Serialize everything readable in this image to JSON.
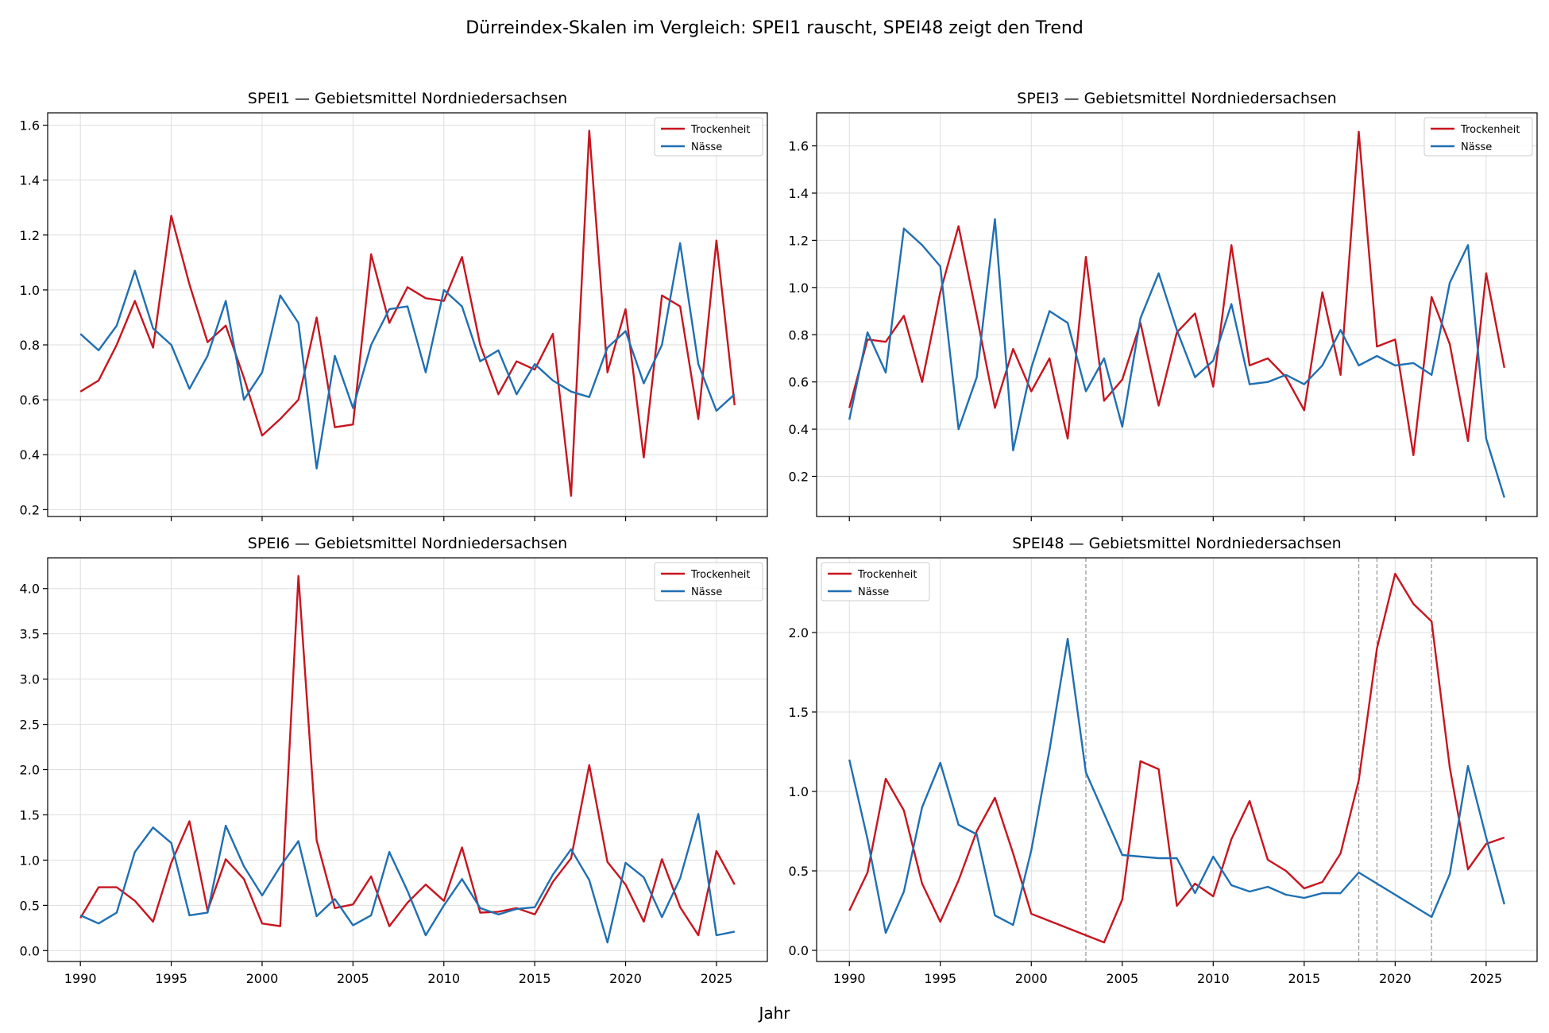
{
  "figure": {
    "suptitle": "Dürreindex-Skalen im Vergleich: SPEI1 rauscht, SPEI48 zeigt den Trend",
    "xlabel": "Jahr"
  },
  "colors": {
    "drought": "#c8151f",
    "wet": "#1f6fb2",
    "grid": "#dedede",
    "marker": "#999999"
  },
  "chart_data": [
    {
      "type": "line",
      "title": "SPEI1 — Gebietsmittel Nordniedersachsen",
      "xlabel": "",
      "ylabel": "",
      "xlim": [
        1988.2,
        2027.8
      ],
      "ylim": [
        0.175,
        1.645
      ],
      "xticks": [
        1990,
        1995,
        2000,
        2005,
        2010,
        2015,
        2020,
        2025
      ],
      "yticks": [
        0.2,
        0.4,
        0.6,
        0.8,
        1.0,
        1.2,
        1.4,
        1.6
      ],
      "grid": true,
      "legend": "top-right",
      "x": [
        1990,
        1991,
        1992,
        1993,
        1994,
        1995,
        1996,
        1997,
        1998,
        1999,
        2000,
        2001,
        2002,
        2003,
        2004,
        2005,
        2006,
        2007,
        2008,
        2009,
        2010,
        2011,
        2012,
        2013,
        2014,
        2015,
        2016,
        2017,
        2018,
        2019,
        2020,
        2021,
        2022,
        2023,
        2024,
        2025,
        2026
      ],
      "series": [
        {
          "name": "Trockenheit",
          "color": "#c8151f",
          "values": [
            0.63,
            0.67,
            0.8,
            0.96,
            0.79,
            1.27,
            1.02,
            0.81,
            0.87,
            0.68,
            0.47,
            0.53,
            0.6,
            0.9,
            0.5,
            0.51,
            1.13,
            0.88,
            1.01,
            0.97,
            0.96,
            1.12,
            0.8,
            0.62,
            0.74,
            0.71,
            0.84,
            0.25,
            1.58,
            0.7,
            0.93,
            0.39,
            0.98,
            0.94,
            0.53,
            1.18,
            0.58
          ]
        },
        {
          "name": "Nässe",
          "color": "#1f6fb2",
          "values": [
            0.84,
            0.78,
            0.87,
            1.07,
            0.86,
            0.8,
            0.64,
            0.76,
            0.96,
            0.6,
            0.7,
            0.98,
            0.88,
            0.35,
            0.76,
            0.57,
            0.8,
            0.93,
            0.94,
            0.7,
            1.0,
            0.94,
            0.74,
            0.78,
            0.62,
            0.73,
            0.67,
            0.63,
            0.61,
            0.79,
            0.85,
            0.66,
            0.8,
            1.17,
            0.73,
            0.56,
            0.62
          ]
        }
      ],
      "vlines": []
    },
    {
      "type": "line",
      "title": "SPEI3 — Gebietsmittel Nordniedersachsen",
      "xlabel": "",
      "ylabel": "",
      "xlim": [
        1988.2,
        2027.8
      ],
      "ylim": [
        0.03,
        1.74
      ],
      "xticks": [
        1990,
        1995,
        2000,
        2005,
        2010,
        2015,
        2020,
        2025
      ],
      "yticks": [
        0.2,
        0.4,
        0.6,
        0.8,
        1.0,
        1.2,
        1.4,
        1.6
      ],
      "grid": true,
      "legend": "top-right",
      "x": [
        1990,
        1991,
        1992,
        1993,
        1994,
        1995,
        1996,
        1997,
        1998,
        1999,
        2000,
        2001,
        2002,
        2003,
        2004,
        2005,
        2006,
        2007,
        2008,
        2009,
        2010,
        2011,
        2012,
        2013,
        2014,
        2015,
        2016,
        2017,
        2018,
        2019,
        2020,
        2021,
        2022,
        2023,
        2024,
        2025,
        2026
      ],
      "series": [
        {
          "name": "Trockenheit",
          "color": "#c8151f",
          "values": [
            0.49,
            0.78,
            0.77,
            0.88,
            0.6,
            0.98,
            1.26,
            0.88,
            0.49,
            0.74,
            0.56,
            0.7,
            0.36,
            1.13,
            0.52,
            0.61,
            0.85,
            0.5,
            0.81,
            0.89,
            0.58,
            1.18,
            0.67,
            0.7,
            0.62,
            0.48,
            0.98,
            0.63,
            1.66,
            0.75,
            0.78,
            0.29,
            0.96,
            0.76,
            0.35,
            1.06,
            0.66
          ]
        },
        {
          "name": "Nässe",
          "color": "#1f6fb2",
          "values": [
            0.44,
            0.81,
            0.64,
            1.25,
            1.18,
            1.09,
            0.4,
            0.62,
            1.29,
            0.31,
            0.66,
            0.9,
            0.85,
            0.56,
            0.7,
            0.41,
            0.87,
            1.06,
            0.82,
            0.62,
            0.69,
            0.93,
            0.59,
            0.6,
            0.63,
            0.59,
            0.67,
            0.82,
            0.67,
            0.71,
            0.67,
            0.68,
            0.63,
            1.02,
            1.18,
            0.36,
            0.11
          ]
        }
      ],
      "vlines": []
    },
    {
      "type": "line",
      "title": "SPEI6 — Gebietsmittel Nordniedersachsen",
      "xlabel": "",
      "ylabel": "",
      "xlim": [
        1988.2,
        2027.8
      ],
      "ylim": [
        -0.12,
        4.34
      ],
      "xticks": [
        1990,
        1995,
        2000,
        2005,
        2010,
        2015,
        2020,
        2025
      ],
      "yticks": [
        0.0,
        0.5,
        1.0,
        1.5,
        2.0,
        2.5,
        3.0,
        3.5,
        4.0
      ],
      "grid": true,
      "legend": "top-right",
      "x": [
        1990,
        1991,
        1992,
        1993,
        1994,
        1995,
        1996,
        1997,
        1998,
        1999,
        2000,
        2001,
        2002,
        2003,
        2004,
        2005,
        2006,
        2007,
        2008,
        2009,
        2010,
        2011,
        2012,
        2013,
        2014,
        2015,
        2016,
        2017,
        2018,
        2019,
        2020,
        2021,
        2022,
        2023,
        2024,
        2025,
        2026
      ],
      "series": [
        {
          "name": "Trockenheit",
          "color": "#c8151f",
          "values": [
            0.36,
            0.7,
            0.7,
            0.55,
            0.32,
            0.97,
            1.43,
            0.44,
            1.01,
            0.79,
            0.3,
            0.27,
            4.14,
            1.22,
            0.47,
            0.51,
            0.82,
            0.27,
            0.53,
            0.73,
            0.55,
            1.14,
            0.42,
            0.43,
            0.47,
            0.4,
            0.76,
            1.02,
            2.05,
            0.98,
            0.73,
            0.32,
            1.01,
            0.48,
            0.17,
            1.1,
            0.73
          ]
        },
        {
          "name": "Nässe",
          "color": "#1f6fb2",
          "values": [
            0.39,
            0.3,
            0.42,
            1.09,
            1.36,
            1.19,
            0.39,
            0.42,
            1.38,
            0.93,
            0.61,
            0.93,
            1.21,
            0.38,
            0.57,
            0.28,
            0.39,
            1.09,
            0.66,
            0.17,
            0.5,
            0.79,
            0.47,
            0.4,
            0.46,
            0.48,
            0.84,
            1.12,
            0.78,
            0.09,
            0.97,
            0.81,
            0.37,
            0.8,
            1.51,
            0.17,
            0.21
          ]
        }
      ],
      "vlines": []
    },
    {
      "type": "line",
      "title": "SPEI48 — Gebietsmittel Nordniedersachsen",
      "xlabel": "",
      "ylabel": "",
      "xlim": [
        1988.2,
        2027.8
      ],
      "ylim": [
        -0.07,
        2.47
      ],
      "xticks": [
        1990,
        1995,
        2000,
        2005,
        2010,
        2015,
        2020,
        2025
      ],
      "yticks": [
        0.0,
        0.5,
        1.0,
        1.5,
        2.0
      ],
      "grid": true,
      "legend": "top-left",
      "series": [
        {
          "name": "Trockenheit",
          "color": "#c8151f",
          "x": [
            1990,
            1991,
            1992,
            1993,
            1994,
            1995,
            1996,
            1997,
            1998,
            1999,
            2000,
            2004,
            2005,
            2006,
            2007,
            2008,
            2009,
            2010,
            2011,
            2012,
            2013,
            2014,
            2015,
            2016,
            2017,
            2018,
            2019,
            2020,
            2021,
            2022,
            2023,
            2024,
            2025,
            2026
          ],
          "values": [
            0.25,
            0.49,
            1.08,
            0.88,
            0.42,
            0.18,
            0.44,
            0.75,
            0.96,
            0.61,
            0.23,
            0.05,
            0.32,
            1.19,
            1.14,
            0.28,
            0.42,
            0.34,
            0.7,
            0.94,
            0.57,
            0.5,
            0.39,
            0.43,
            0.61,
            1.07,
            1.9,
            2.37,
            2.18,
            2.07,
            1.15,
            0.51,
            0.67,
            0.71
          ]
        },
        {
          "name": "Nässe",
          "color": "#1f6fb2",
          "x": [
            1990,
            1991,
            1992,
            1993,
            1994,
            1995,
            1996,
            1997,
            1998,
            1999,
            2000,
            2001,
            2002,
            2003,
            2005,
            2007,
            2008,
            2009,
            2010,
            2011,
            2012,
            2013,
            2014,
            2015,
            2016,
            2017,
            2018,
            2022,
            2023,
            2024,
            2025,
            2026
          ],
          "values": [
            1.2,
            0.7,
            0.11,
            0.37,
            0.9,
            1.18,
            0.79,
            0.73,
            0.22,
            0.16,
            0.63,
            1.26,
            1.96,
            1.12,
            0.6,
            0.58,
            0.58,
            0.36,
            0.59,
            0.41,
            0.37,
            0.4,
            0.35,
            0.33,
            0.36,
            0.36,
            0.49,
            0.21,
            0.48,
            1.16,
            0.71,
            0.29
          ]
        }
      ],
      "vlines": [
        2003,
        2018,
        2019,
        2022
      ]
    }
  ]
}
